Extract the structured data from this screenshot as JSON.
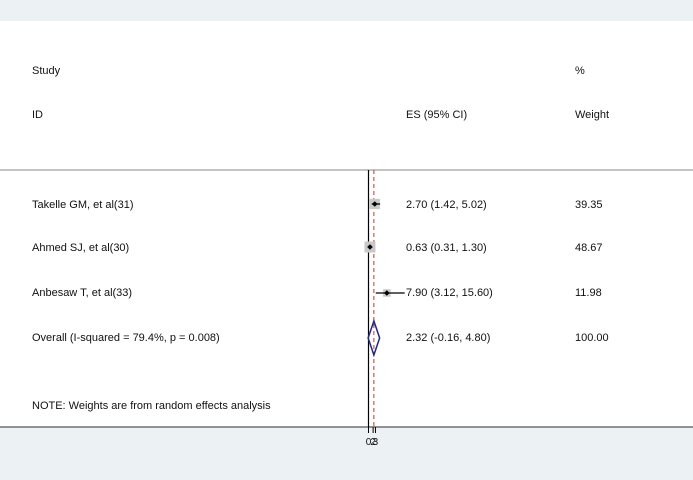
{
  "chart_data": {
    "type": "forest",
    "columns": {
      "study_header_line1": "Study",
      "study_header_line2": "ID",
      "es_header": "ES (95% CI)",
      "weight_header_line1": "%",
      "weight_header_line2": "Weight"
    },
    "rows": [
      {
        "study": "Takelle GM, et al(31)",
        "es": 2.7,
        "lower": 1.42,
        "upper": 5.02,
        "es_text": "2.70 (1.42, 5.02)",
        "weight_text": "39.35"
      },
      {
        "study": "Ahmed SJ, et al(30)",
        "es": 0.63,
        "lower": 0.31,
        "upper": 1.3,
        "es_text": "0.63 (0.31, 1.30)",
        "weight_text": "48.67"
      },
      {
        "study": "Anbesaw T, et al(33)",
        "es": 7.9,
        "lower": 3.12,
        "upper": 15.6,
        "es_text": "7.90 (3.12, 15.60)",
        "weight_text": "11.98"
      }
    ],
    "overall": {
      "label": "Overall  (I-squared = 79.4%, p = 0.008)",
      "es": 2.32,
      "lower": -0.16,
      "upper": 4.8,
      "es_text": "2.32 (-0.16, 4.80)",
      "weight_text": "100.00"
    },
    "note": "NOTE: Weights are from random effects analysis",
    "x_tick_labels": [
      "0",
      "2",
      "3"
    ],
    "null_line": 0,
    "colors": {
      "marker_box": "#c8c8c8",
      "point": "#000000",
      "ci_line": "#000000",
      "overall_diamond": "#1f2a80",
      "overall_line": "#c0392b",
      "axis": "#000000"
    }
  }
}
